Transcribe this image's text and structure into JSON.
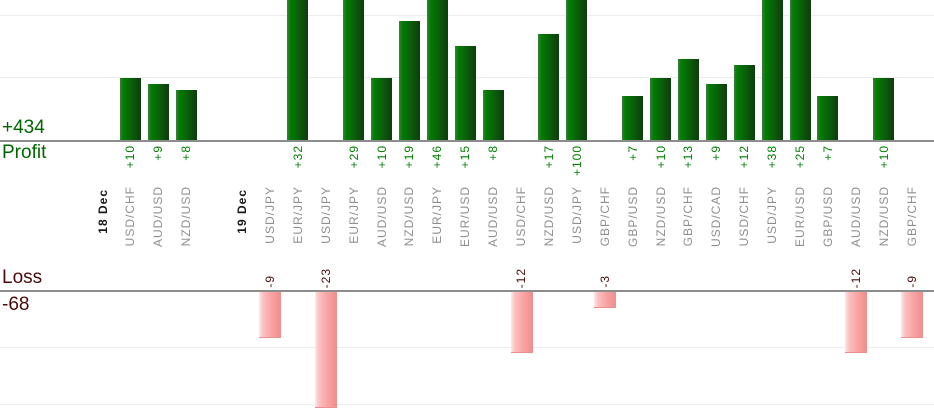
{
  "chart_data": {
    "type": "bar",
    "title": "",
    "profit_section": {
      "axis_title": "Profit",
      "total_label": "+434",
      "total": 434,
      "gridline_values": [
        10,
        20
      ]
    },
    "loss_section": {
      "axis_title": "Loss",
      "total_label": "-68",
      "total": -68
    },
    "legend_position": "none",
    "grid": true,
    "bars_clipped_at_top": true,
    "columns": [
      {
        "label": "18 Dec",
        "kind": "date",
        "value": null,
        "value_label": ""
      },
      {
        "label": "USD/CHF",
        "kind": "pair",
        "value": 10,
        "value_label": "+10"
      },
      {
        "label": "AUD/USD",
        "kind": "pair",
        "value": 9,
        "value_label": "+9"
      },
      {
        "label": "NZD/USD",
        "kind": "pair",
        "value": 8,
        "value_label": "+8"
      },
      {
        "label": "",
        "kind": "spacer",
        "value": null,
        "value_label": ""
      },
      {
        "label": "19 Dec",
        "kind": "date",
        "value": null,
        "value_label": ""
      },
      {
        "label": "USD/JPY",
        "kind": "pair",
        "value": -9,
        "value_label": "-9"
      },
      {
        "label": "EUR/JPY",
        "kind": "pair",
        "value": 32,
        "value_label": "+32"
      },
      {
        "label": "USD/JPY",
        "kind": "pair",
        "value": -23,
        "value_label": "-23"
      },
      {
        "label": "EUR/JPY",
        "kind": "pair",
        "value": 29,
        "value_label": "+29"
      },
      {
        "label": "AUD/USD",
        "kind": "pair",
        "value": 10,
        "value_label": "+10"
      },
      {
        "label": "NZD/USD",
        "kind": "pair",
        "value": 19,
        "value_label": "+19"
      },
      {
        "label": "EUR/JPY",
        "kind": "pair",
        "value": 46,
        "value_label": "+46"
      },
      {
        "label": "EUR/USD",
        "kind": "pair",
        "value": 15,
        "value_label": "+15"
      },
      {
        "label": "AUD/USD",
        "kind": "pair",
        "value": 8,
        "value_label": "+8"
      },
      {
        "label": "USD/CHF",
        "kind": "pair",
        "value": -12,
        "value_label": "-12"
      },
      {
        "label": "NZD/USD",
        "kind": "pair",
        "value": 17,
        "value_label": "+17"
      },
      {
        "label": "USD/JPY",
        "kind": "pair",
        "value": 100,
        "value_label": "+100"
      },
      {
        "label": "GBP/CHF",
        "kind": "pair",
        "value": -3,
        "value_label": "-3"
      },
      {
        "label": "GBP/USD",
        "kind": "pair",
        "value": 7,
        "value_label": "+7"
      },
      {
        "label": "NZD/USD",
        "kind": "pair",
        "value": 10,
        "value_label": "+10"
      },
      {
        "label": "GBP/CHF",
        "kind": "pair",
        "value": 13,
        "value_label": "+13"
      },
      {
        "label": "USD/CAD",
        "kind": "pair",
        "value": 9,
        "value_label": "+9"
      },
      {
        "label": "USD/CHF",
        "kind": "pair",
        "value": 12,
        "value_label": "+12"
      },
      {
        "label": "USD/JPY",
        "kind": "pair",
        "value": 38,
        "value_label": "+38"
      },
      {
        "label": "EUR/USD",
        "kind": "pair",
        "value": 25,
        "value_label": "+25"
      },
      {
        "label": "GBP/USD",
        "kind": "pair",
        "value": 7,
        "value_label": "+7"
      },
      {
        "label": "AUD/USD",
        "kind": "pair",
        "value": -12,
        "value_label": "-12"
      },
      {
        "label": "NZD/USD",
        "kind": "pair",
        "value": 10,
        "value_label": "+10"
      },
      {
        "label": "GBP/CHF",
        "kind": "pair",
        "value": -9,
        "value_label": "-9"
      }
    ],
    "colors": {
      "profit_bar": "#006400",
      "loss_bar": "#f9a7a7",
      "profit_label": "#006600",
      "profit_value": "#008000",
      "loss_label": "#4b0b0b",
      "loss_value": "#4b0b0b",
      "pair_label": "#8f8f8f",
      "date_label": "#1a1a1a",
      "axis_line": "#8c8c8c",
      "gridline": "#ededed",
      "background": "#ffffff"
    }
  }
}
